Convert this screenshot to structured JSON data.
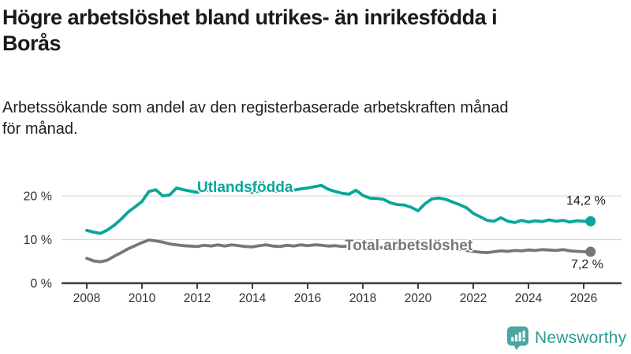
{
  "header": {
    "title_lines": [
      "Högre arbetslöshet bland utrikes- än inrikesfödda i",
      "Borås"
    ],
    "subtitle_lines": [
      "Arbetssökande som andel av den registerbaserade arbetskraften månad",
      "för månad."
    ]
  },
  "chart_data": {
    "type": "line",
    "title": "Högre arbetslöshet bland utrikes- än inrikesfödda i Borås",
    "subtitle": "Arbetssökande som andel av den registerbaserade arbetskraften månad för månad.",
    "grid": "horizontal-only",
    "legend_position": "inline-on-line",
    "x_axis": {
      "start": 2008,
      "step": 0.25,
      "tick_values": [
        2008,
        2010,
        2012,
        2014,
        2016,
        2018,
        2020,
        2022,
        2024,
        2026
      ],
      "tick_labels": [
        "2008",
        "2010",
        "2012",
        "2014",
        "2016",
        "2018",
        "2020",
        "2022",
        "2024",
        "2026"
      ]
    },
    "y_axis": {
      "unit": "%",
      "range": [
        0,
        24
      ],
      "tick_values": [
        0,
        10,
        20
      ],
      "tick_labels": [
        "0 %",
        "10 %",
        "20 %"
      ]
    },
    "series": [
      {
        "name": "Utlandsfödda",
        "color": "#0aa69a",
        "end_label": "14,2 %",
        "end_value": 14.2,
        "values": [
          12.1,
          11.7,
          11.4,
          12.2,
          13.3,
          14.7,
          16.3,
          17.5,
          18.7,
          21.0,
          21.4,
          20.0,
          20.2,
          21.8,
          21.4,
          21.1,
          20.8,
          21.3,
          21.1,
          21.4,
          21.0,
          21.4,
          21.5,
          21.2,
          20.8,
          21.1,
          21.3,
          21.0,
          21.2,
          21.5,
          21.3,
          21.6,
          21.8,
          22.1,
          22.4,
          21.5,
          21.0,
          20.6,
          20.4,
          21.3,
          20.1,
          19.5,
          19.4,
          19.2,
          18.4,
          18.0,
          17.9,
          17.4,
          16.6,
          18.2,
          19.3,
          19.5,
          19.2,
          18.6,
          18.0,
          17.3,
          16.0,
          15.2,
          14.4,
          14.2,
          15.0,
          14.2,
          13.9,
          14.4,
          14.0,
          14.3,
          14.1,
          14.5,
          14.2,
          14.4,
          14.0,
          14.3,
          14.2,
          14.2
        ]
      },
      {
        "name": "Total arbetslöshet",
        "color": "#76767d",
        "end_label": "7,2 %",
        "end_value": 7.2,
        "values": [
          5.7,
          5.1,
          4.9,
          5.3,
          6.2,
          7.0,
          7.9,
          8.6,
          9.3,
          9.9,
          9.7,
          9.4,
          9.0,
          8.8,
          8.6,
          8.5,
          8.4,
          8.7,
          8.5,
          8.8,
          8.5,
          8.8,
          8.6,
          8.4,
          8.3,
          8.6,
          8.8,
          8.5,
          8.4,
          8.7,
          8.5,
          8.8,
          8.6,
          8.8,
          8.7,
          8.5,
          8.6,
          8.4,
          8.5,
          8.3,
          8.2,
          8.4,
          8.3,
          8.1,
          8.0,
          7.9,
          8.0,
          8.2,
          8.6,
          9.1,
          9.0,
          8.8,
          8.4,
          8.1,
          7.8,
          7.5,
          7.3,
          7.1,
          7.0,
          7.2,
          7.4,
          7.3,
          7.5,
          7.4,
          7.6,
          7.5,
          7.7,
          7.6,
          7.5,
          7.7,
          7.4,
          7.3,
          7.2,
          7.2
        ]
      }
    ],
    "colors": {
      "grid": "#d9d9d9",
      "axis": "#3d3d3d",
      "axis_text": "#333333"
    }
  },
  "footer": {
    "brand": "Newsworthy",
    "brand_color": "#2f9a94",
    "icon": "newsworthy-bar-chart-bubble-icon",
    "icon_color": "#4aa69f"
  }
}
